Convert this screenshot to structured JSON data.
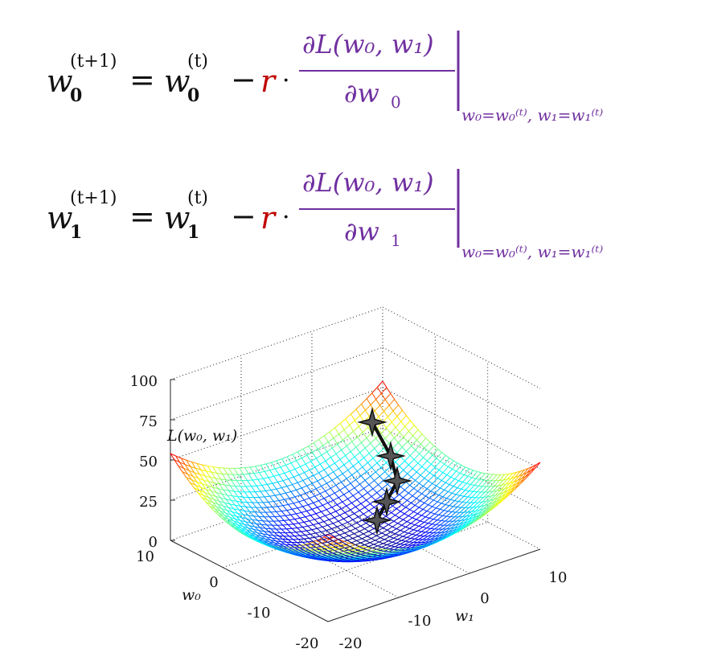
{
  "equation_0": {
    "lhs_var": "w",
    "lhs_sub": "0",
    "lhs_sup": "(t+1)",
    "equals": "=",
    "rhs_var": "w",
    "rhs_sub": "0",
    "rhs_sup": "(t)",
    "minus": "−",
    "rate": "r",
    "dot": "·",
    "numerator": "∂L(w₀, w₁)",
    "denominator_var": "∂w",
    "denominator_sub": "0",
    "eval_at": "w₀=w₀⁽ᵗ⁾, w₁=w₁⁽ᵗ⁾"
  },
  "equation_1": {
    "lhs_var": "w",
    "lhs_sub": "1",
    "lhs_sup": "(t+1)",
    "equals": "=",
    "rhs_var": "w",
    "rhs_sub": "1",
    "rhs_sup": "(t)",
    "minus": "−",
    "rate": "r",
    "dot": "·",
    "numerator": "∂L(w₀, w₁)",
    "denominator_var": "∂w",
    "denominator_sub": "1",
    "eval_at": "w₀=w₀⁽ᵗ⁾, w₁=w₁⁽ᵗ⁾"
  },
  "plot": {
    "z_label": "L(w₀, w₁)",
    "z_ticks": [
      "100",
      "75",
      "50",
      "25",
      "0"
    ],
    "w0_label": "w₀",
    "w0_ticks": [
      "10",
      "0",
      "-10",
      "-20"
    ],
    "w1_label": "w₁",
    "w1_ticks": [
      "-20",
      "-10",
      "0",
      "10"
    ],
    "surface": "quadratic bowl mesh, jet colormap",
    "path_markers": 5,
    "colors": {
      "equation_purple": "#7030a0",
      "rate_red": "#c00000",
      "path": "#111111",
      "marker_fill": "#555555"
    }
  }
}
